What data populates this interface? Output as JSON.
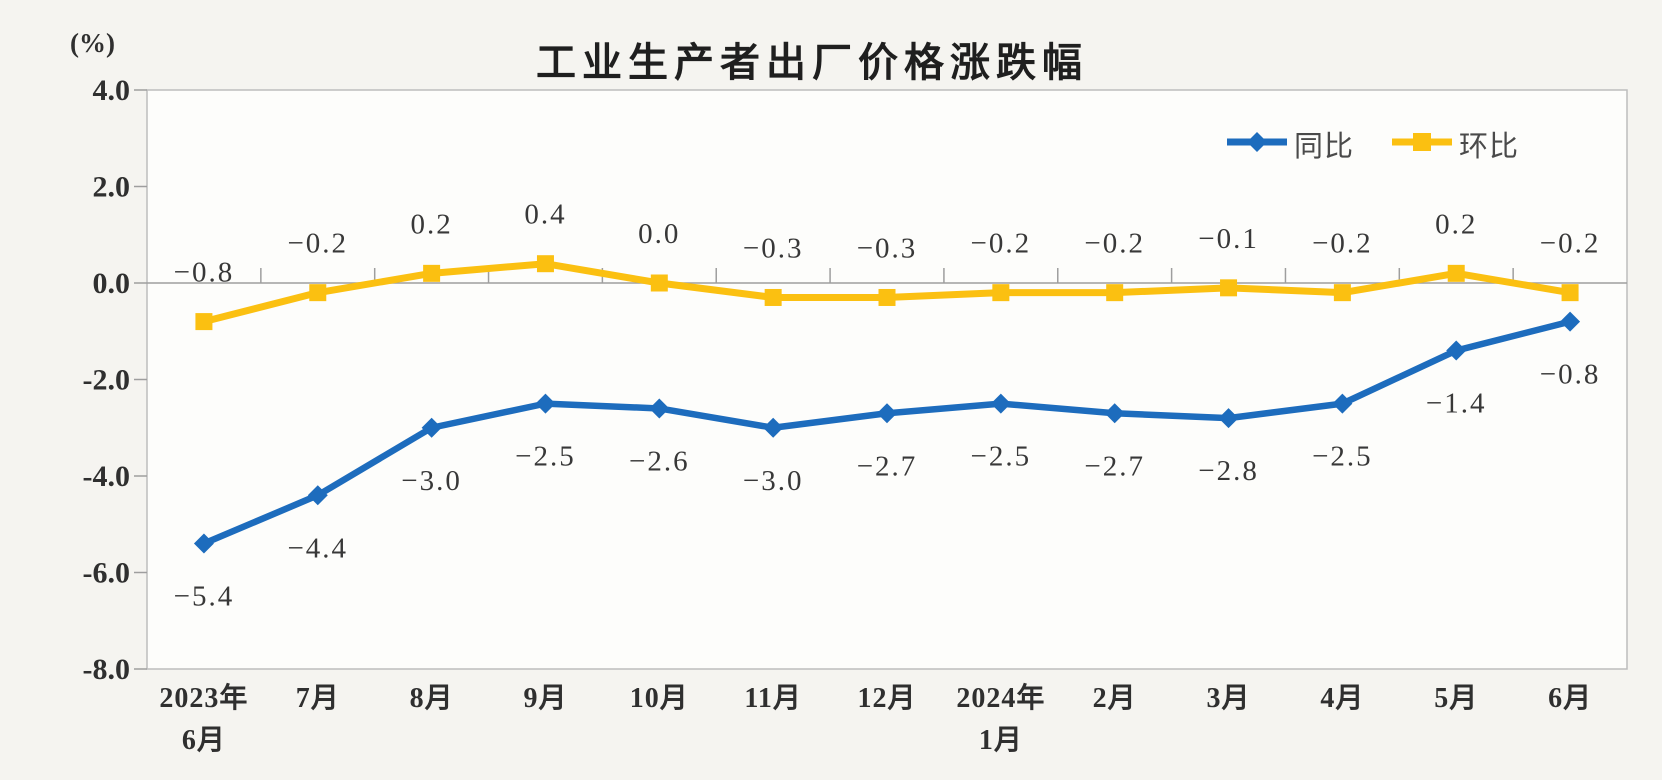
{
  "title": "工业生产者出厂价格涨跌幅",
  "unit_label": "(%)",
  "legend": [
    {
      "label": "同比",
      "color": "#1d6cbd",
      "marker": "diamond"
    },
    {
      "label": "环比",
      "color": "#fbc011",
      "marker": "square"
    }
  ],
  "colors": {
    "yoy_line": "#1d6cbd",
    "mom_line": "#fbc011",
    "axis": "#9e9e9e",
    "border": "#bdbdbd",
    "plot_bg": "#fdfdfb",
    "page_bg": "#f5f4f0",
    "label_text": "#383838"
  },
  "chart_data": {
    "type": "line",
    "title": "工业生产者出厂价格涨跌幅",
    "unit": "%",
    "categories": [
      [
        "2023年",
        "6月"
      ],
      [
        "7月"
      ],
      [
        "8月"
      ],
      [
        "9月"
      ],
      [
        "10月"
      ],
      [
        "11月"
      ],
      [
        "12月"
      ],
      [
        "2024年",
        "1月"
      ],
      [
        "2月"
      ],
      [
        "3月"
      ],
      [
        "4月"
      ],
      [
        "5月"
      ],
      [
        "6月"
      ]
    ],
    "ylim": [
      -8.0,
      4.0
    ],
    "yticks": {
      "values": [
        4,
        2,
        0,
        -2,
        -4,
        -6,
        -8
      ],
      "labels": [
        "4.0",
        "2.0",
        "0.0",
        "-2.0",
        "-4.0",
        "-6.0",
        "-8.0"
      ]
    },
    "grid": "none",
    "legend_position": "top-right",
    "series": [
      {
        "name": "同比",
        "color": "#1d6cbd",
        "marker": "diamond",
        "label_position": "below",
        "values": [
          -5.4,
          -4.4,
          -3.0,
          -2.5,
          -2.6,
          -3.0,
          -2.7,
          -2.5,
          -2.7,
          -2.8,
          -2.5,
          -1.4,
          -0.8
        ],
        "labels": [
          "−5.4",
          "−4.4",
          "−3.0",
          "−2.5",
          "−2.6",
          "−3.0",
          "−2.7",
          "−2.5",
          "−2.7",
          "−2.8",
          "−2.5",
          "−1.4",
          "−0.8"
        ]
      },
      {
        "name": "环比",
        "color": "#fbc011",
        "marker": "square",
        "label_position": "above",
        "values": [
          -0.8,
          -0.2,
          0.2,
          0.4,
          0.0,
          -0.3,
          -0.3,
          -0.2,
          -0.2,
          -0.1,
          -0.2,
          0.2,
          -0.2
        ],
        "labels": [
          "−0.8",
          "−0.2",
          "0.2",
          "0.4",
          "0.0",
          "−0.3",
          "−0.3",
          "−0.2",
          "−0.2",
          "−0.1",
          "−0.2",
          "0.2",
          "−0.2"
        ]
      }
    ]
  }
}
